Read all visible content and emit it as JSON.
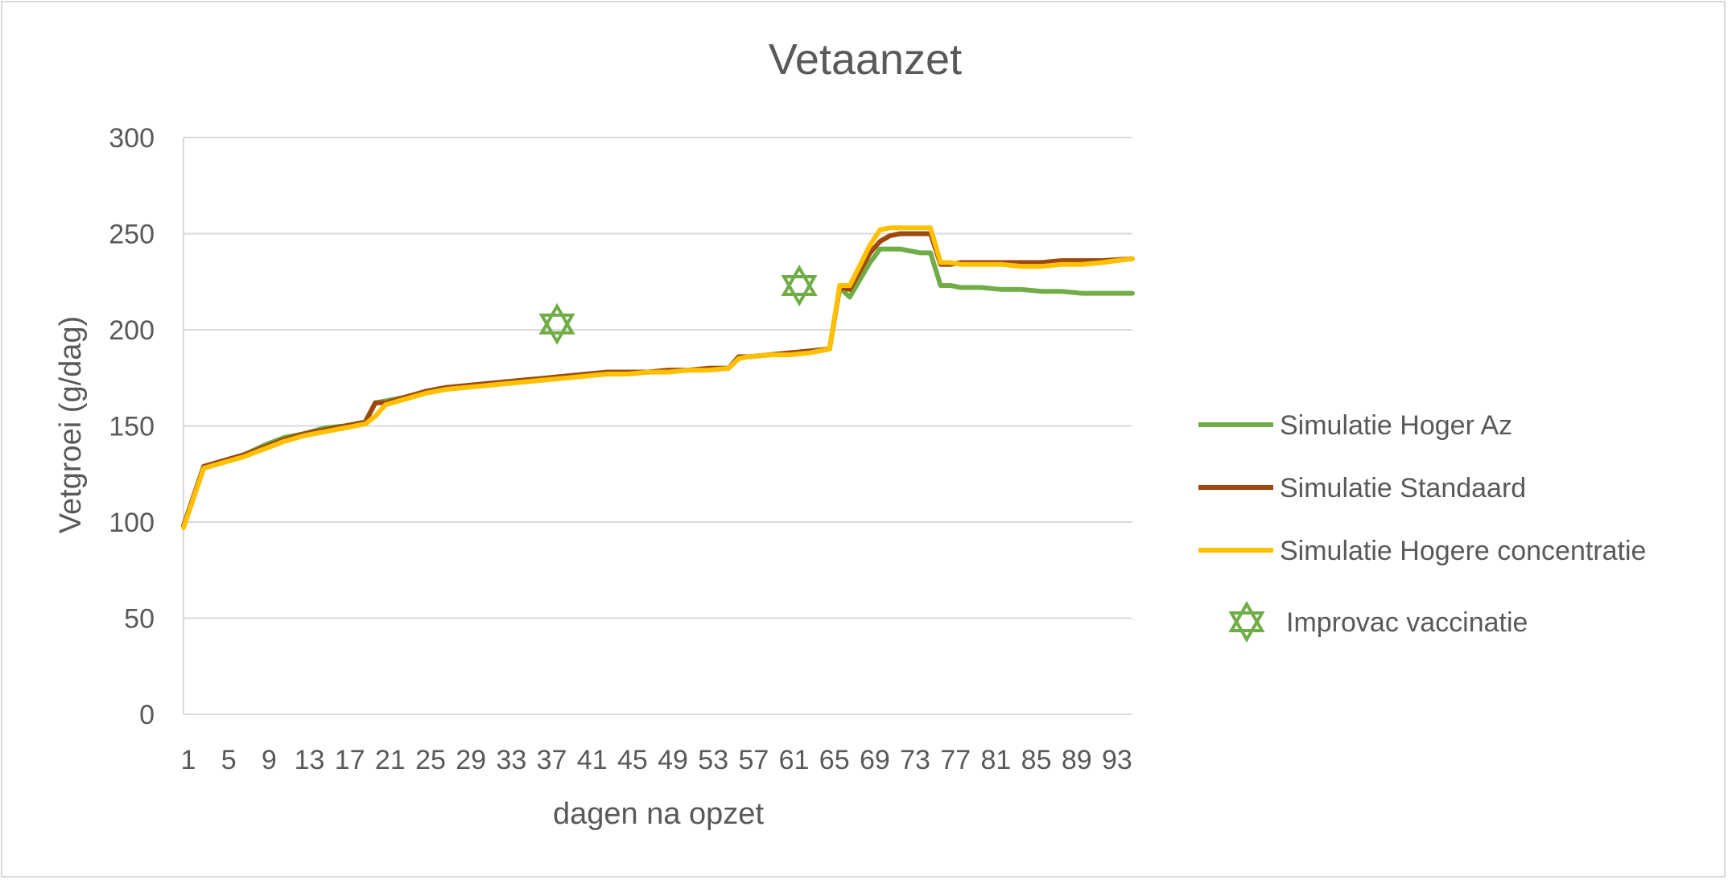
{
  "chart_data": {
    "type": "line",
    "title": "Vetaanzet",
    "xlabel": "dagen na opzet",
    "ylabel": "Vetgroei (g/dag)",
    "ylim": [
      0,
      300
    ],
    "yticks": [
      0,
      50,
      100,
      150,
      200,
      250,
      300
    ],
    "xlim": [
      1,
      95
    ],
    "xtick_labels": [
      "1",
      "5",
      "9",
      "13",
      "17",
      "21",
      "25",
      "29",
      "33",
      "37",
      "41",
      "45",
      "49",
      "53",
      "57",
      "61",
      "65",
      "69",
      "73",
      "77",
      "81",
      "85",
      "89",
      "93"
    ],
    "grid": true,
    "legend_position": "right",
    "series": [
      {
        "name": "Simulatie Hoger Az",
        "color": "#70ad47",
        "x": [
          1,
          3,
          5,
          7,
          9,
          11,
          13,
          15,
          17,
          19,
          20,
          21,
          23,
          25,
          27,
          29,
          31,
          33,
          35,
          37,
          39,
          41,
          43,
          45,
          47,
          49,
          51,
          53,
          55,
          56,
          57,
          59,
          61,
          63,
          65,
          66,
          67,
          69,
          70,
          71,
          72,
          73,
          74,
          75,
          76,
          77,
          78,
          80,
          82,
          84,
          86,
          88,
          90,
          92,
          95
        ],
        "y": [
          98,
          128,
          132,
          135,
          140,
          144,
          146,
          149,
          150,
          152,
          162,
          163,
          165,
          168,
          170,
          171,
          172,
          173,
          174,
          175,
          176,
          177,
          178,
          178,
          178,
          179,
          179,
          180,
          180,
          186,
          186,
          187,
          188,
          189,
          190,
          222,
          217,
          235,
          242,
          242,
          242,
          241,
          240,
          240,
          223,
          223,
          222,
          222,
          221,
          221,
          220,
          220,
          219,
          219,
          219
        ]
      },
      {
        "name": "Simulatie Standaard",
        "color": "#9e480e",
        "x": [
          1,
          3,
          5,
          7,
          9,
          11,
          13,
          15,
          17,
          19,
          20,
          21,
          23,
          25,
          27,
          29,
          31,
          33,
          35,
          37,
          39,
          41,
          43,
          45,
          47,
          49,
          51,
          53,
          55,
          56,
          57,
          59,
          61,
          63,
          65,
          66,
          67,
          69,
          70,
          71,
          72,
          73,
          74,
          75,
          76,
          77,
          78,
          80,
          82,
          84,
          86,
          88,
          90,
          92,
          95
        ],
        "y": [
          98,
          129,
          132,
          135,
          139,
          143,
          146,
          148,
          150,
          152,
          162,
          162,
          165,
          168,
          170,
          171,
          172,
          173,
          174,
          175,
          176,
          177,
          178,
          178,
          178,
          179,
          179,
          180,
          180,
          186,
          186,
          187,
          188,
          189,
          190,
          222,
          221,
          240,
          246,
          249,
          250,
          250,
          250,
          250,
          234,
          234,
          235,
          235,
          235,
          235,
          235,
          236,
          236,
          236,
          237
        ]
      },
      {
        "name": "Simulatie Hogere concentratie",
        "color": "#ffc000",
        "x": [
          1,
          3,
          5,
          7,
          9,
          11,
          13,
          15,
          17,
          19,
          20,
          21,
          23,
          25,
          27,
          29,
          31,
          33,
          35,
          37,
          39,
          41,
          43,
          45,
          47,
          49,
          51,
          53,
          55,
          56,
          57,
          59,
          61,
          63,
          65,
          66,
          67,
          69,
          70,
          71,
          72,
          73,
          74,
          75,
          76,
          77,
          78,
          80,
          82,
          84,
          86,
          88,
          90,
          92,
          95
        ],
        "y": [
          97,
          128,
          131,
          134,
          138,
          142,
          145,
          147,
          149,
          151,
          155,
          161,
          164,
          167,
          169,
          170,
          171,
          172,
          173,
          174,
          175,
          176,
          177,
          177,
          178,
          178,
          179,
          179,
          180,
          185,
          186,
          187,
          187,
          188,
          190,
          223,
          223,
          244,
          252,
          253,
          253,
          253,
          253,
          253,
          235,
          235,
          234,
          234,
          234,
          233,
          233,
          234,
          234,
          235,
          237
        ]
      }
    ],
    "markers": {
      "name": "Improvac vaccinatie",
      "color": "#70ad47",
      "symbol": "hexagram",
      "points": [
        {
          "x": 38,
          "y": 203
        },
        {
          "x": 62,
          "y": 223
        }
      ]
    }
  }
}
